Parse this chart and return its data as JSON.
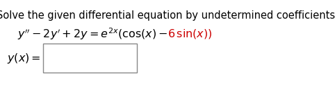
{
  "title_text": "Solve the given differential equation by undetermined coefficients.",
  "background_color": "#ffffff",
  "text_color": "#000000",
  "red_color": "#cc0000",
  "title_fontsize": 10.5,
  "eq_fontsize": 11.5,
  "label_fontsize": 11.5
}
